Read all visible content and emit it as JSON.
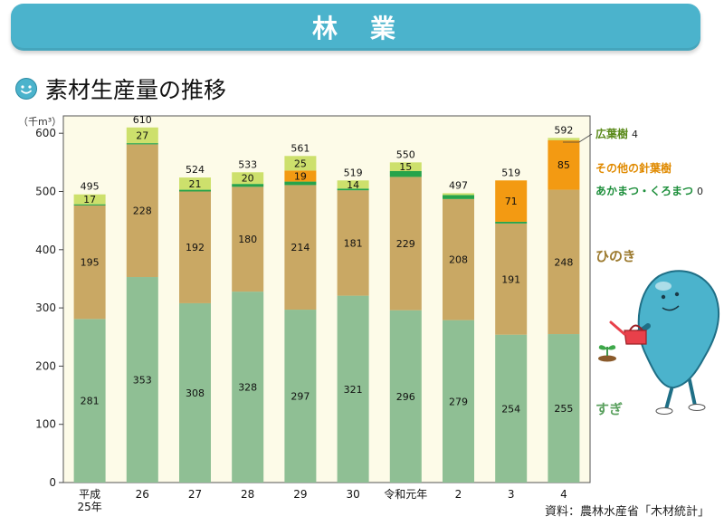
{
  "header": {
    "title": "林　業"
  },
  "subtitle": "素材生産量の推移",
  "source": "資料：農林水産省「木材統計」",
  "colors": {
    "sugi": "#8fbf94",
    "hinoki": "#c9a864",
    "akamatsu": "#26a34a",
    "other_conifer": "#f39a12",
    "broadleaf": "#cde06c",
    "banner": "#4bb3cc",
    "plot_bg": "#fdfbe8"
  },
  "chart_data": {
    "type": "bar",
    "stacked": true,
    "unit_label": "（千m³）",
    "categories": [
      "平成25年",
      "26",
      "27",
      "28",
      "29",
      "30",
      "令和元年",
      "2",
      "3",
      "4"
    ],
    "series": [
      {
        "name": "すぎ",
        "values": [
          281,
          353,
          308,
          328,
          297,
          321,
          296,
          279,
          254,
          255
        ]
      },
      {
        "name": "ひのき",
        "values": [
          195,
          228,
          192,
          180,
          214,
          181,
          229,
          208,
          191,
          248
        ]
      },
      {
        "name": "あかまつ・くろまつ",
        "values": [
          2,
          2,
          3,
          5,
          6,
          3,
          10,
          7,
          3,
          0
        ]
      },
      {
        "name": "その他の針葉樹",
        "values": [
          0,
          0,
          0,
          0,
          19,
          0,
          0,
          0,
          71,
          85
        ]
      },
      {
        "name": "広葉樹",
        "values": [
          17,
          27,
          21,
          20,
          25,
          14,
          15,
          3,
          0,
          4
        ]
      }
    ],
    "labels": {
      "すぎ": [
        "281",
        "353",
        "308",
        "328",
        "297",
        "321",
        "296",
        "279",
        "254",
        "255"
      ],
      "ひのき": [
        "195",
        "228",
        "192",
        "180",
        "214",
        "181",
        "229",
        "208",
        "191",
        "248"
      ],
      "その他の針葉樹": [
        "",
        "",
        "",
        "",
        "19",
        "",
        "",
        "",
        "71",
        "85"
      ],
      "広葉樹": [
        "17",
        "27",
        "21",
        "20",
        "25",
        "14",
        "15",
        "",
        "",
        ""
      ]
    },
    "totals": [
      495,
      610,
      524,
      533,
      561,
      519,
      550,
      497,
      519,
      592
    ],
    "legend": [
      {
        "label": "広葉樹",
        "value": "4"
      },
      {
        "label": "その他の針葉樹",
        "value": ""
      },
      {
        "label": "あかまつ・くろまつ",
        "value": "0"
      },
      {
        "label": "ひのき",
        "value": ""
      },
      {
        "label": "すぎ",
        "value": ""
      }
    ],
    "ylim": [
      0,
      650
    ],
    "yticks": [
      0,
      100,
      200,
      300,
      400,
      500,
      600
    ],
    "grid": false,
    "legend_position": "right"
  }
}
